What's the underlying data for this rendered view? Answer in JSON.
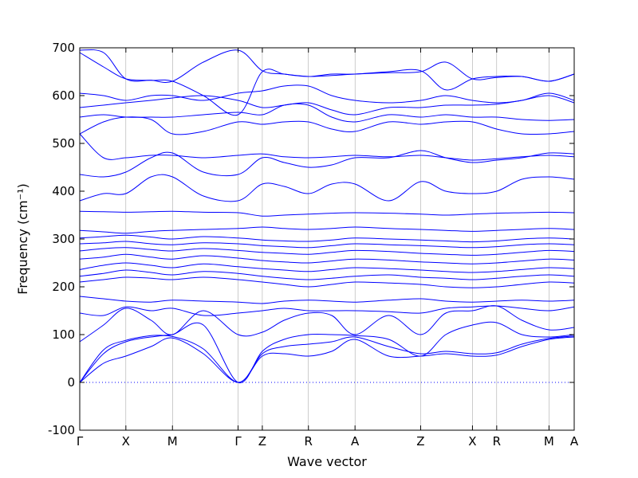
{
  "chart_data": {
    "type": "line",
    "title": "",
    "xlabel": "Wave vector",
    "ylabel": "Frequency (cm⁻¹)",
    "ylim": [
      -100,
      700
    ],
    "yticks": [
      -100,
      0,
      100,
      200,
      300,
      400,
      500,
      600,
      700
    ],
    "xlim": [
      0,
      10.4
    ],
    "line_color": "#0000ff",
    "zero_line": {
      "y": 0,
      "style": "dotted",
      "color": "#0000ff"
    },
    "high_symmetry_points": [
      {
        "label": "Γ",
        "x": 0.0
      },
      {
        "label": "X",
        "x": 0.97
      },
      {
        "label": "M",
        "x": 1.95
      },
      {
        "label": "Γ",
        "x": 3.33
      },
      {
        "label": "Z",
        "x": 3.84
      },
      {
        "label": "R",
        "x": 4.81
      },
      {
        "label": "A",
        "x": 5.79
      },
      {
        "label": "Z",
        "x": 7.17
      },
      {
        "label": "X",
        "x": 8.26
      },
      {
        "label": "R",
        "x": 8.77
      },
      {
        "label": "M",
        "x": 9.87
      },
      {
        "label": "A",
        "x": 10.4
      }
    ],
    "series": [
      {
        "x": [
          0,
          0.5,
          0.97,
          1.5,
          1.95,
          2.6,
          3.33,
          3.84,
          4.3,
          4.81,
          5.3,
          5.79,
          6.5,
          7.17,
          7.7,
          8.26,
          8.77,
          9.3,
          9.87,
          10.4
        ],
        "values": [
          0,
          40,
          55,
          75,
          93,
          60,
          0,
          55,
          60,
          55,
          65,
          90,
          55,
          55,
          60,
          55,
          57,
          75,
          90,
          95
        ]
      },
      {
        "x": [
          0,
          0.5,
          0.97,
          1.5,
          1.95,
          2.6,
          3.33,
          3.84,
          4.3,
          4.81,
          5.3,
          5.79,
          6.5,
          7.17,
          7.7,
          8.26,
          8.77,
          9.3,
          9.87,
          10.4
        ],
        "values": [
          0,
          60,
          85,
          95,
          96,
          70,
          0,
          60,
          75,
          80,
          85,
          95,
          75,
          60,
          65,
          60,
          62,
          80,
          92,
          97
        ]
      },
      {
        "x": [
          0,
          0.5,
          0.97,
          1.5,
          1.95,
          2.6,
          3.33,
          3.84,
          4.3,
          4.81,
          5.3,
          5.79,
          6.5,
          7.17,
          7.7,
          8.26,
          8.77,
          9.3,
          9.87,
          10.4
        ],
        "values": [
          0,
          68,
          88,
          98,
          100,
          120,
          0,
          65,
          90,
          100,
          100,
          98,
          90,
          55,
          100,
          120,
          125,
          100,
          95,
          100
        ]
      },
      {
        "x": [
          0,
          0.5,
          0.97,
          1.5,
          1.95,
          2.6,
          3.33,
          3.84,
          4.3,
          4.81,
          5.3,
          5.79,
          6.5,
          7.17,
          7.7,
          8.26,
          8.77,
          9.3,
          9.87,
          10.4
        ],
        "values": [
          85,
          120,
          155,
          130,
          100,
          150,
          100,
          105,
          130,
          145,
          140,
          100,
          140,
          100,
          145,
          150,
          160,
          130,
          110,
          115
        ]
      },
      {
        "x": [
          0,
          0.5,
          0.97,
          1.5,
          1.95,
          2.6,
          3.33,
          3.84,
          4.3,
          4.81,
          5.3,
          5.79,
          6.5,
          7.17,
          7.7,
          8.26,
          8.77,
          9.3,
          9.87,
          10.4
        ],
        "values": [
          145,
          140,
          158,
          150,
          155,
          140,
          145,
          150,
          155,
          150,
          150,
          150,
          148,
          145,
          155,
          158,
          160,
          155,
          150,
          158
        ]
      },
      {
        "x": [
          0,
          0.5,
          0.97,
          1.5,
          1.95,
          2.6,
          3.33,
          3.84,
          4.3,
          4.81,
          5.3,
          5.79,
          6.5,
          7.17,
          7.7,
          8.26,
          8.77,
          9.3,
          9.87,
          10.4
        ],
        "values": [
          180,
          175,
          170,
          168,
          172,
          170,
          168,
          165,
          170,
          172,
          170,
          168,
          172,
          175,
          170,
          168,
          170,
          172,
          170,
          172
        ]
      },
      {
        "x": [
          0,
          0.5,
          0.97,
          1.5,
          1.95,
          2.6,
          3.33,
          3.84,
          4.3,
          4.81,
          5.3,
          5.79,
          6.5,
          7.17,
          7.7,
          8.26,
          8.77,
          9.3,
          9.87,
          10.4
        ],
        "values": [
          210,
          215,
          220,
          218,
          215,
          220,
          215,
          210,
          205,
          200,
          205,
          210,
          208,
          205,
          200,
          198,
          200,
          205,
          210,
          208
        ]
      },
      {
        "x": [
          0,
          0.5,
          0.97,
          1.5,
          1.95,
          2.6,
          3.33,
          3.84,
          4.3,
          4.81,
          5.3,
          5.79,
          6.5,
          7.17,
          7.7,
          8.26,
          8.77,
          9.3,
          9.87,
          10.4
        ],
        "values": [
          222,
          228,
          235,
          230,
          225,
          232,
          228,
          222,
          218,
          215,
          218,
          222,
          225,
          220,
          218,
          215,
          218,
          222,
          225,
          222
        ]
      },
      {
        "x": [
          0,
          0.5,
          0.97,
          1.5,
          1.95,
          2.6,
          3.33,
          3.84,
          4.3,
          4.81,
          5.3,
          5.79,
          6.5,
          7.17,
          7.7,
          8.26,
          8.77,
          9.3,
          9.87,
          10.4
        ],
        "values": [
          236,
          245,
          250,
          245,
          240,
          248,
          242,
          238,
          235,
          232,
          236,
          240,
          238,
          235,
          232,
          230,
          232,
          236,
          240,
          238
        ]
      },
      {
        "x": [
          0,
          0.5,
          0.97,
          1.5,
          1.95,
          2.6,
          3.33,
          3.84,
          4.3,
          4.81,
          5.3,
          5.79,
          6.5,
          7.17,
          7.7,
          8.26,
          8.77,
          9.3,
          9.87,
          10.4
        ],
        "values": [
          258,
          262,
          268,
          262,
          258,
          265,
          260,
          255,
          252,
          250,
          254,
          258,
          256,
          252,
          250,
          248,
          250,
          254,
          258,
          256
        ]
      },
      {
        "x": [
          0,
          0.5,
          0.97,
          1.5,
          1.95,
          2.6,
          3.33,
          3.84,
          4.3,
          4.81,
          5.3,
          5.79,
          6.5,
          7.17,
          7.7,
          8.26,
          8.77,
          9.3,
          9.87,
          10.4
        ],
        "values": [
          275,
          280,
          282,
          278,
          275,
          280,
          276,
          272,
          270,
          268,
          272,
          276,
          274,
          270,
          268,
          266,
          268,
          272,
          276,
          274
        ]
      },
      {
        "x": [
          0,
          0.5,
          0.97,
          1.5,
          1.95,
          2.6,
          3.33,
          3.84,
          4.3,
          4.81,
          5.3,
          5.79,
          6.5,
          7.17,
          7.7,
          8.26,
          8.77,
          9.3,
          9.87,
          10.4
        ],
        "values": [
          290,
          292,
          295,
          290,
          288,
          292,
          290,
          286,
          284,
          282,
          286,
          290,
          288,
          286,
          284,
          282,
          284,
          288,
          290,
          288
        ]
      },
      {
        "x": [
          0,
          0.5,
          0.97,
          1.5,
          1.95,
          2.6,
          3.33,
          3.84,
          4.3,
          4.81,
          5.3,
          5.79,
          6.5,
          7.17,
          7.7,
          8.26,
          8.77,
          9.3,
          9.87,
          10.4
        ],
        "values": [
          302,
          305,
          308,
          304,
          300,
          305,
          302,
          298,
          296,
          295,
          298,
          302,
          300,
          298,
          296,
          294,
          296,
          300,
          302,
          300
        ]
      },
      {
        "x": [
          0,
          0.5,
          0.97,
          1.5,
          1.95,
          2.6,
          3.33,
          3.84,
          4.3,
          4.81,
          5.3,
          5.79,
          6.5,
          7.17,
          7.7,
          8.26,
          8.77,
          9.3,
          9.87,
          10.4
        ],
        "values": [
          318,
          315,
          312,
          316,
          318,
          320,
          322,
          325,
          322,
          320,
          322,
          325,
          322,
          320,
          318,
          316,
          318,
          320,
          322,
          320
        ]
      },
      {
        "x": [
          0,
          0.5,
          0.97,
          1.5,
          1.95,
          2.6,
          3.33,
          3.84,
          4.3,
          4.81,
          5.3,
          5.79,
          6.5,
          7.17,
          7.7,
          8.26,
          8.77,
          9.3,
          9.87,
          10.4
        ],
        "values": [
          358,
          357,
          356,
          357,
          358,
          356,
          355,
          348,
          350,
          352,
          354,
          355,
          354,
          352,
          350,
          352,
          354,
          355,
          356,
          355
        ]
      },
      {
        "x": [
          0,
          0.5,
          0.97,
          1.5,
          1.95,
          2.6,
          3.33,
          3.84,
          4.3,
          4.81,
          5.3,
          5.79,
          6.5,
          7.17,
          7.7,
          8.26,
          8.77,
          9.3,
          9.87,
          10.4
        ],
        "values": [
          380,
          395,
          395,
          430,
          430,
          390,
          380,
          415,
          410,
          395,
          415,
          415,
          380,
          420,
          400,
          395,
          400,
          425,
          430,
          425
        ]
      },
      {
        "x": [
          0,
          0.5,
          0.97,
          1.5,
          1.95,
          2.6,
          3.33,
          3.84,
          4.3,
          4.81,
          5.3,
          5.79,
          6.5,
          7.17,
          7.7,
          8.26,
          8.77,
          9.3,
          9.87,
          10.4
        ],
        "values": [
          435,
          430,
          440,
          470,
          480,
          440,
          435,
          470,
          460,
          450,
          455,
          470,
          470,
          485,
          470,
          460,
          465,
          470,
          480,
          478
        ]
      },
      {
        "x": [
          0,
          0.5,
          0.97,
          1.5,
          1.95,
          2.6,
          3.33,
          3.84,
          4.3,
          4.81,
          5.3,
          5.79,
          6.5,
          7.17,
          7.7,
          8.26,
          8.77,
          9.3,
          9.87,
          10.4
        ],
        "values": [
          520,
          470,
          470,
          475,
          475,
          470,
          475,
          478,
          472,
          470,
          472,
          475,
          472,
          475,
          470,
          465,
          468,
          472,
          475,
          472
        ]
      },
      {
        "x": [
          0,
          0.5,
          0.97,
          1.5,
          1.95,
          2.6,
          3.33,
          3.84,
          4.3,
          4.81,
          5.3,
          5.79,
          6.5,
          7.17,
          7.7,
          8.26,
          8.77,
          9.3,
          9.87,
          10.4
        ],
        "values": [
          520,
          545,
          555,
          550,
          520,
          525,
          545,
          540,
          545,
          545,
          530,
          525,
          545,
          540,
          545,
          545,
          530,
          520,
          520,
          525
        ]
      },
      {
        "x": [
          0,
          0.5,
          0.97,
          1.5,
          1.95,
          2.6,
          3.33,
          3.84,
          4.3,
          4.81,
          5.3,
          5.79,
          6.5,
          7.17,
          7.7,
          8.26,
          8.77,
          9.3,
          9.87,
          10.4
        ],
        "values": [
          555,
          560,
          555,
          555,
          555,
          560,
          565,
          560,
          580,
          580,
          555,
          545,
          560,
          555,
          560,
          555,
          555,
          550,
          548,
          550
        ]
      },
      {
        "x": [
          0,
          0.5,
          0.97,
          1.5,
          1.95,
          2.6,
          3.33,
          3.84,
          4.3,
          4.81,
          5.3,
          5.79,
          6.5,
          7.17,
          7.7,
          8.26,
          8.77,
          9.3,
          9.87,
          10.4
        ],
        "values": [
          575,
          580,
          585,
          590,
          595,
          600,
          590,
          575,
          580,
          585,
          570,
          560,
          575,
          575,
          580,
          580,
          582,
          590,
          600,
          585
        ]
      },
      {
        "x": [
          0,
          0.5,
          0.97,
          1.5,
          1.95,
          2.6,
          3.33,
          3.84,
          4.3,
          4.81,
          5.3,
          5.79,
          6.5,
          7.17,
          7.7,
          8.26,
          8.77,
          9.3,
          9.87,
          10.4
        ],
        "values": [
          605,
          600,
          590,
          600,
          600,
          590,
          605,
          610,
          620,
          620,
          600,
          590,
          585,
          590,
          600,
          590,
          585,
          590,
          605,
          590
        ]
      },
      {
        "x": [
          0,
          0.5,
          0.97,
          1.5,
          1.95,
          2.6,
          3.33,
          3.84,
          4.3,
          4.81,
          5.3,
          5.79,
          6.5,
          7.17,
          7.7,
          8.26,
          8.77,
          9.3,
          9.87,
          10.4
        ],
        "values": [
          695,
          690,
          635,
          632,
          630,
          670,
          695,
          652,
          645,
          640,
          645,
          645,
          650,
          652,
          612,
          635,
          640,
          640,
          630,
          645
        ]
      },
      {
        "x": [
          0,
          0.5,
          0.97,
          1.5,
          1.95,
          2.6,
          3.33,
          3.84,
          4.3,
          4.81,
          5.3,
          5.79,
          6.5,
          7.17,
          7.7,
          8.26,
          8.77,
          9.3,
          9.87,
          10.4
        ],
        "values": [
          690,
          660,
          635,
          632,
          630,
          600,
          560,
          650,
          645,
          640,
          642,
          645,
          648,
          650,
          670,
          635,
          638,
          640,
          630,
          645
        ]
      }
    ]
  }
}
